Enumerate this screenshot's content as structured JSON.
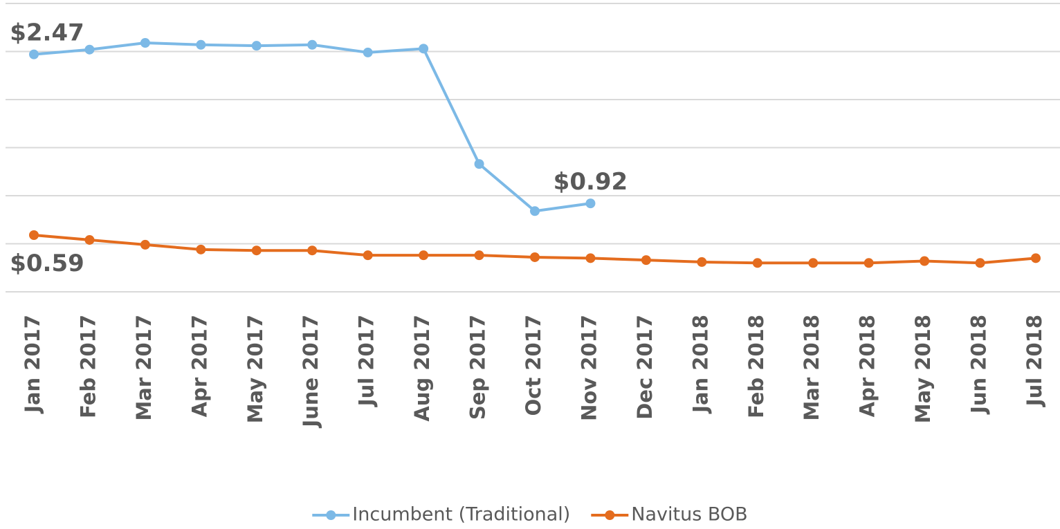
{
  "chart_data": {
    "type": "line",
    "categories": [
      "Jan 2017",
      "Feb 2017",
      "Mar 2017",
      "Apr 2017",
      "May 2017",
      "June 2017",
      "Jul 2017",
      "Aug 2017",
      "Sep 2017",
      "Oct 2017",
      "Nov 2017",
      "Dec 2017",
      "Jan 2018",
      "Feb 2018",
      "Mar 2018",
      "Apr 2018",
      "May 2018",
      "Jun 2018",
      "Jul 2018"
    ],
    "series": [
      {
        "name": "Incumbent (Traditional)",
        "color": "#7cb9e6",
        "values": [
          2.47,
          2.52,
          2.59,
          2.57,
          2.56,
          2.57,
          2.49,
          2.53,
          1.33,
          0.84,
          0.92,
          null,
          null,
          null,
          null,
          null,
          null,
          null,
          null
        ],
        "value_labels": [
          "$2.47",
          null,
          null,
          null,
          null,
          null,
          null,
          null,
          null,
          null,
          "$0.92",
          null,
          null,
          null,
          null,
          null,
          null,
          null,
          null
        ]
      },
      {
        "name": "Navitus BOB",
        "color": "#e46c1e",
        "values": [
          0.59,
          0.54,
          0.49,
          0.44,
          0.43,
          0.43,
          0.38,
          0.38,
          0.38,
          0.36,
          0.35,
          0.33,
          0.31,
          0.3,
          0.3,
          0.3,
          0.32,
          0.3,
          0.35
        ],
        "value_labels": [
          "$0.59",
          null,
          null,
          null,
          null,
          null,
          null,
          null,
          null,
          null,
          null,
          null,
          null,
          null,
          null,
          null,
          null,
          null,
          null
        ]
      }
    ],
    "ylim": [
      0,
      3
    ],
    "yticks": [
      0,
      0.5,
      1,
      1.5,
      2,
      2.5,
      3
    ],
    "grid": true,
    "legend": "bottom"
  }
}
